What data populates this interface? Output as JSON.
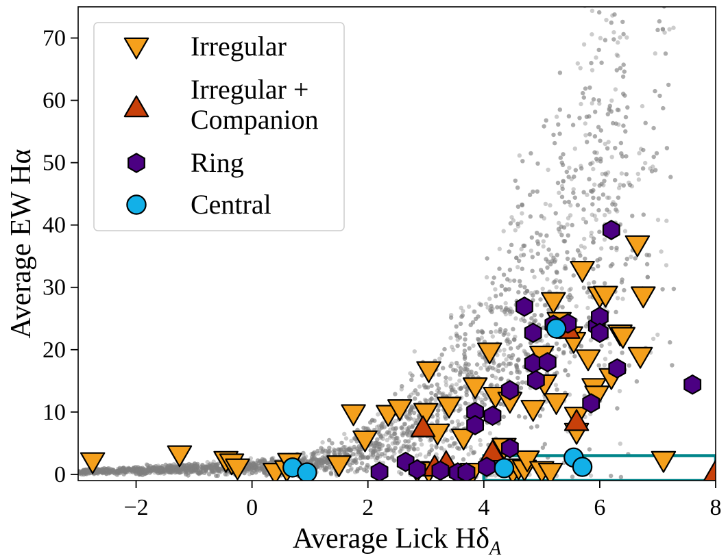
{
  "chart_data": {
    "type": "scatter",
    "title": "",
    "xlabel": "Average Lick Hδ",
    "xlabel_sub": "A",
    "ylabel": "Average EW Hα",
    "xlim": [
      -3,
      8
    ],
    "ylim": [
      -1,
      75
    ],
    "xticks": [
      -2,
      0,
      2,
      4,
      6,
      8
    ],
    "yticks": [
      0,
      10,
      20,
      30,
      40,
      50,
      60,
      70
    ],
    "xtick_labels": [
      "−2",
      "0",
      "2",
      "4",
      "6",
      "8"
    ],
    "ytick_labels": [
      "0",
      "10",
      "20",
      "30",
      "40",
      "50",
      "60",
      "70"
    ],
    "grid": false,
    "legend_position": "top-left",
    "colors": {
      "background": "#808080",
      "irregular": "#f5a01c",
      "irregular_companion": "#c8400a",
      "ring": "#4b0082",
      "central": "#12b0e8",
      "box": "#00858a"
    },
    "selection_box": {
      "x0": 4,
      "x1": 8,
      "y0": -1,
      "y1": 3
    },
    "series": [
      {
        "name": "Irregular",
        "marker": "triangle-down",
        "points": [
          [
            -2.75,
            2.1
          ],
          [
            -1.25,
            3.2
          ],
          [
            -0.45,
            2.3
          ],
          [
            -0.35,
            1.9
          ],
          [
            -0.25,
            1.1
          ],
          [
            0.4,
            0.4
          ],
          [
            0.6,
            0.8
          ],
          [
            0.65,
            2.0
          ],
          [
            1.5,
            1.6
          ],
          [
            1.75,
            9.8
          ],
          [
            1.95,
            5.6
          ],
          [
            2.35,
            9.7
          ],
          [
            2.55,
            10.6
          ],
          [
            2.85,
            0.7
          ],
          [
            3.0,
            10.0
          ],
          [
            3.05,
            16.7
          ],
          [
            3.05,
            0.6
          ],
          [
            3.2,
            6.7
          ],
          [
            3.4,
            11.0
          ],
          [
            3.65,
            5.9
          ],
          [
            3.8,
            0.4
          ],
          [
            3.85,
            14.1
          ],
          [
            4.1,
            19.7
          ],
          [
            4.2,
            12.6
          ],
          [
            4.35,
            4.4
          ],
          [
            4.45,
            11.8
          ],
          [
            4.5,
            0.5
          ],
          [
            4.6,
            1.1
          ],
          [
            4.7,
            0.9
          ],
          [
            4.75,
            2.4
          ],
          [
            4.85,
            10.5
          ],
          [
            5.0,
            19.2
          ],
          [
            5.0,
            0.7
          ],
          [
            5.05,
            14.6
          ],
          [
            5.15,
            0.4
          ],
          [
            5.2,
            27.8
          ],
          [
            5.25,
            11.6
          ],
          [
            5.3,
            24.6
          ],
          [
            5.5,
            22.3
          ],
          [
            5.55,
            21.4
          ],
          [
            5.6,
            9.4
          ],
          [
            5.6,
            6.8
          ],
          [
            5.7,
            32.8
          ],
          [
            5.8,
            18.6
          ],
          [
            5.9,
            14.0
          ],
          [
            5.95,
            12.8
          ],
          [
            6.0,
            28.7
          ],
          [
            6.1,
            28.8
          ],
          [
            6.2,
            15.6
          ],
          [
            6.35,
            22.6
          ],
          [
            6.4,
            22.2
          ],
          [
            6.65,
            36.9
          ],
          [
            6.7,
            19.0
          ],
          [
            6.75,
            28.7
          ],
          [
            7.1,
            2.3
          ]
        ]
      },
      {
        "name": "Irregular +\nCompanion",
        "name_line1": "Irregular +",
        "name_line2": "Companion",
        "marker": "triangle-up",
        "points": [
          [
            2.95,
            7.4
          ],
          [
            3.15,
            1.1
          ],
          [
            3.35,
            1.8
          ],
          [
            4.15,
            3.5
          ],
          [
            5.45,
            23.2
          ],
          [
            5.6,
            8.4
          ],
          [
            8.0,
            0.3
          ]
        ]
      },
      {
        "name": "Ring",
        "marker": "hexagon",
        "points": [
          [
            2.2,
            0.4
          ],
          [
            2.65,
            2.0
          ],
          [
            2.85,
            0.8
          ],
          [
            3.25,
            0.6
          ],
          [
            3.55,
            0.3
          ],
          [
            3.7,
            0.3
          ],
          [
            3.85,
            10.0
          ],
          [
            3.85,
            7.9
          ],
          [
            4.05,
            1.2
          ],
          [
            4.15,
            9.4
          ],
          [
            4.45,
            13.5
          ],
          [
            4.45,
            4.2
          ],
          [
            4.7,
            26.9
          ],
          [
            4.85,
            22.7
          ],
          [
            4.85,
            17.8
          ],
          [
            4.9,
            15.1
          ],
          [
            5.1,
            18.0
          ],
          [
            5.2,
            24.0
          ],
          [
            5.45,
            24.2
          ],
          [
            5.85,
            11.4
          ],
          [
            5.95,
            23.8
          ],
          [
            6.0,
            25.3
          ],
          [
            6.0,
            22.7
          ],
          [
            6.2,
            39.2
          ],
          [
            6.3,
            17.0
          ],
          [
            7.6,
            14.4
          ]
        ]
      },
      {
        "name": "Central",
        "marker": "circle",
        "points": [
          [
            0.7,
            1.1
          ],
          [
            0.95,
            0.3
          ],
          [
            4.35,
            1.0
          ],
          [
            5.25,
            23.4
          ],
          [
            5.55,
            2.7
          ],
          [
            5.7,
            1.2
          ]
        ]
      }
    ]
  }
}
